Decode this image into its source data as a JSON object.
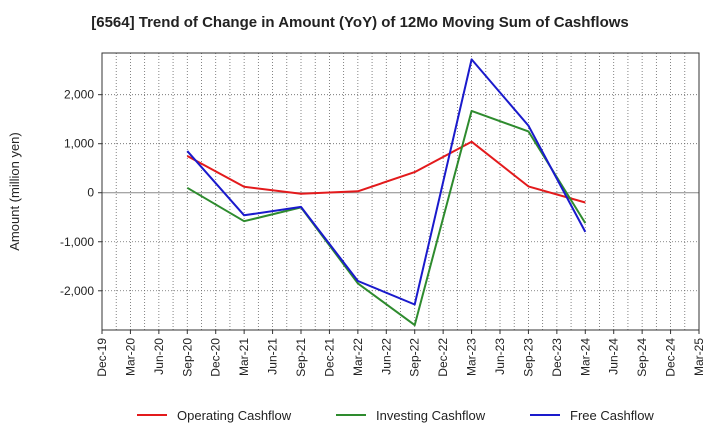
{
  "chart_data": {
    "type": "line",
    "title": "[6564]  Trend of Change in Amount (YoY) of 12Mo Moving Sum of Cashflows",
    "xlabel": "",
    "ylabel": "Amount (million yen)",
    "ylim": [
      -2800,
      2850
    ],
    "yticks": [
      -2000,
      -1000,
      0,
      1000,
      2000
    ],
    "ytick_labels": [
      "-2,000",
      "-1,000",
      "0",
      "1,000",
      "2,000"
    ],
    "categories": [
      "Dec-19",
      "Mar-20",
      "Jun-20",
      "Sep-20",
      "Dec-20",
      "Mar-21",
      "Jun-21",
      "Sep-21",
      "Dec-21",
      "Mar-22",
      "Jun-22",
      "Sep-22",
      "Dec-22",
      "Mar-23",
      "Jun-23",
      "Sep-23",
      "Dec-23",
      "Mar-24",
      "Jun-24",
      "Sep-24",
      "Dec-24",
      "Mar-25"
    ],
    "grid": true,
    "legend_position": "bottom",
    "series": [
      {
        "name": "Operating Cashflow",
        "color": "#e31a1c",
        "values": [
          null,
          null,
          null,
          750,
          null,
          120,
          null,
          -20,
          null,
          30,
          null,
          420,
          null,
          1040,
          null,
          130,
          null,
          -200,
          null,
          null,
          null,
          null
        ]
      },
      {
        "name": "Investing Cashflow",
        "color": "#2e8b2e",
        "values": [
          null,
          null,
          null,
          100,
          null,
          -580,
          null,
          -300,
          null,
          -1850,
          null,
          -2700,
          null,
          1670,
          null,
          1250,
          null,
          -620,
          null,
          null,
          null,
          null
        ]
      },
      {
        "name": "Free Cashflow",
        "color": "#1a1acc",
        "values": [
          null,
          null,
          null,
          850,
          null,
          -460,
          null,
          -290,
          null,
          -1800,
          null,
          -2280,
          null,
          2720,
          null,
          1370,
          null,
          -800,
          null,
          null,
          null,
          null
        ]
      }
    ]
  }
}
